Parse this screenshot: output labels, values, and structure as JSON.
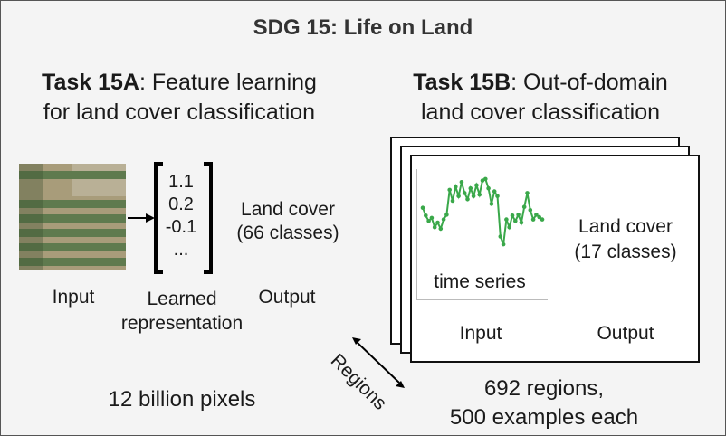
{
  "title": "SDG 15: Life on Land",
  "task_a": {
    "bold": "Task 15A",
    "rest_line1": ": Feature learning",
    "line2": "for land cover classification",
    "vector": [
      "1.1",
      "0.2",
      "-0.1",
      "..."
    ],
    "output_text_line1": "Land cover",
    "output_text_line2": "(66 classes)",
    "label_input": "Input",
    "label_learned_line1": "Learned",
    "label_learned_line2": "representation",
    "label_output": "Output",
    "footer": "12 billion pixels"
  },
  "task_b": {
    "bold": "Task 15B",
    "rest_line1": ": Out-of-domain",
    "line2": "land cover classification",
    "series_label": "time series",
    "output_text_line1": "Land cover",
    "output_text_line2": "(17 classes)",
    "label_input": "Input",
    "label_output": "Output",
    "axis_label": "Regions",
    "footer_line1": "692 regions,",
    "footer_line2": "500 examples each"
  },
  "colors": {
    "series": "#3aa84a",
    "frame_bg": "#f4f4f4",
    "text": "#1a1a1a"
  },
  "chart_data": {
    "type": "line",
    "title": "",
    "xlabel": "",
    "ylabel": "",
    "series": [
      {
        "values": [
          0.55,
          0.45,
          0.38,
          0.42,
          0.3,
          0.36,
          0.28,
          0.4,
          0.46,
          0.78,
          0.64,
          0.82,
          0.7,
          0.88,
          0.74,
          0.66,
          0.8,
          0.7,
          0.84,
          0.72,
          0.9,
          0.92,
          0.8,
          0.6,
          0.76,
          0.7,
          0.18,
          0.08,
          0.4,
          0.3,
          0.45,
          0.38,
          0.46,
          0.36,
          0.56,
          0.74,
          0.52,
          0.4,
          0.46,
          0.43,
          0.4
        ]
      }
    ]
  }
}
